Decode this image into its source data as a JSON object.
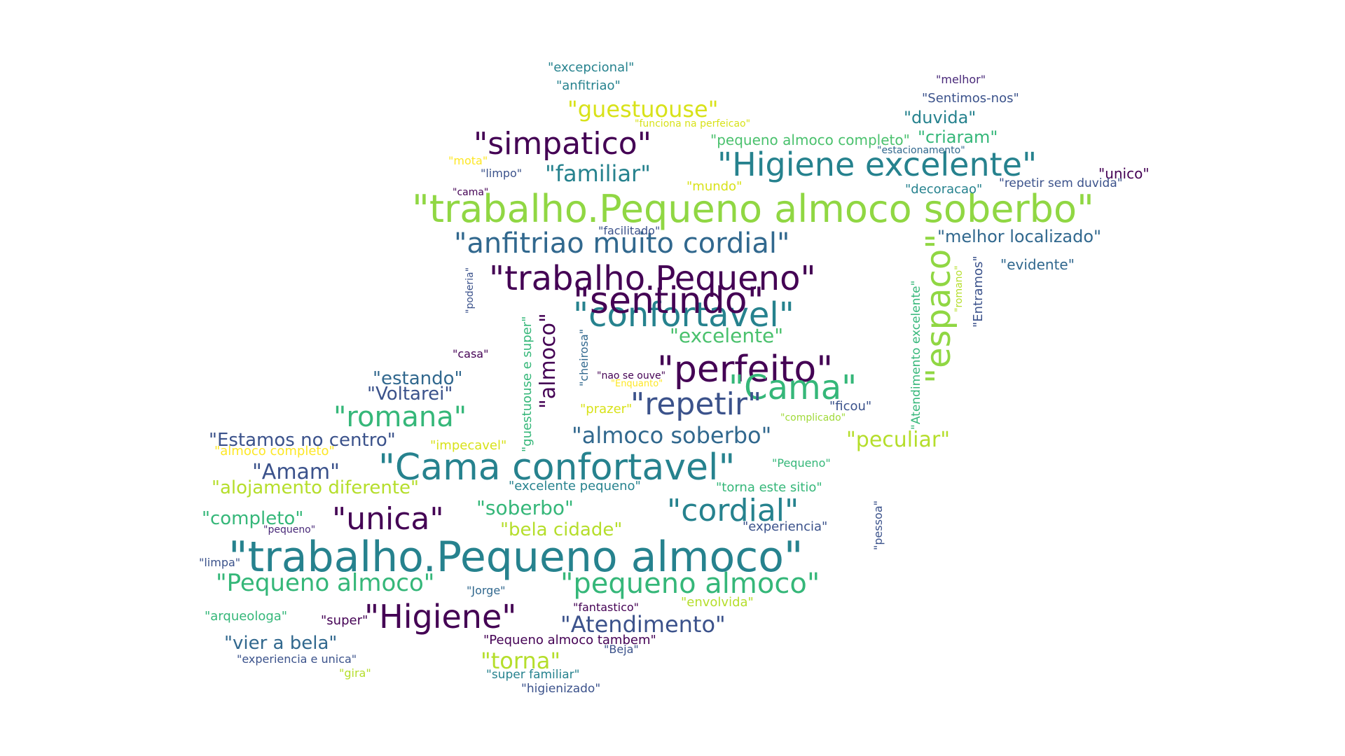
{
  "palette": {
    "dark_purple": "#440154",
    "indigo": "#3b528b",
    "teal": "#21908c",
    "green": "#35b779",
    "lime": "#90d743",
    "yellow": "#e7e419"
  },
  "words": [
    {
      "text": "\"trabalho.Pequeno almoco soberbo\"",
      "color": "#90d743"
    },
    {
      "text": "\"trabalho.Pequeno almoco\"",
      "color": "#26828e"
    },
    {
      "text": "\"Cama confortavel\"",
      "color": "#26828e"
    },
    {
      "text": "\"Higiene excelente\"",
      "color": "#26828e"
    },
    {
      "text": "\"trabalho.Pequeno\"",
      "color": "#440154"
    },
    {
      "text": "\"anfitriao muito cordial\"",
      "color": "#31688e"
    },
    {
      "text": "\"confortavel\"",
      "color": "#26828e"
    },
    {
      "text": "\"perfeito\"",
      "color": "#440154"
    },
    {
      "text": "\"sentindo\"",
      "color": "#440154"
    },
    {
      "text": "\"espaco\"",
      "color": "#90d743"
    },
    {
      "text": "\"Cama\"",
      "color": "#35b779"
    },
    {
      "text": "\"simpatico\"",
      "color": "#440154"
    },
    {
      "text": "\"Higiene\"",
      "color": "#440154"
    },
    {
      "text": "\"repetir\"",
      "color": "#3b528b"
    },
    {
      "text": "\"cordial\"",
      "color": "#26828e"
    },
    {
      "text": "\"unica\"",
      "color": "#440154"
    },
    {
      "text": "\"romana\"",
      "color": "#35b779"
    },
    {
      "text": "\"pequeno almoco\"",
      "color": "#35b779"
    },
    {
      "text": "\"Pequeno almoco\"",
      "color": "#35b779"
    },
    {
      "text": "\"almoco soberbo\"",
      "color": "#31688e"
    },
    {
      "text": "\"Atendimento\"",
      "color": "#3b528b"
    },
    {
      "text": "\"almoco\"",
      "color": "#440154"
    },
    {
      "text": "\"peculiar\"",
      "color": "#b5de2b"
    },
    {
      "text": "\"guestuouse\"",
      "color": "#d8e219"
    },
    {
      "text": "\"familiar\"",
      "color": "#26828e"
    },
    {
      "text": "\"excelente\"",
      "color": "#4ac16d"
    },
    {
      "text": "\"melhor localizado\"",
      "color": "#31688e"
    },
    {
      "text": "\"alojamento diferente\"",
      "color": "#b5de2b"
    },
    {
      "text": "\"soberbo\"",
      "color": "#35b779"
    },
    {
      "text": "\"torna\"",
      "color": "#b5de2b"
    },
    {
      "text": "\"Amam\"",
      "color": "#3b528b"
    },
    {
      "text": "\"estando\"",
      "color": "#31688e"
    },
    {
      "text": "\"Voltarei\"",
      "color": "#3b528b"
    },
    {
      "text": "\"Estamos no centro\"",
      "color": "#3b528b"
    },
    {
      "text": "\"completo\"",
      "color": "#35b779"
    },
    {
      "text": "\"bela cidade\"",
      "color": "#b5de2b"
    },
    {
      "text": "\"vier a bela\"",
      "color": "#31688e"
    },
    {
      "text": "\"duvida\"",
      "color": "#26828e"
    },
    {
      "text": "\"criaram\"",
      "color": "#35b779"
    },
    {
      "text": "\"pequeno almoco completo\"",
      "color": "#4ac16d"
    },
    {
      "text": "\"Sentimos-nos\"",
      "color": "#3b528b"
    },
    {
      "text": "\"excepcional\"",
      "color": "#26828e"
    },
    {
      "text": "\"anfitriao\"",
      "color": "#26828e"
    },
    {
      "text": "\"melhor\"",
      "color": "#482878"
    },
    {
      "text": "\"unico\"",
      "color": "#440154"
    },
    {
      "text": "\"repetir sem duvida\"",
      "color": "#3b528b"
    },
    {
      "text": "\"decoracao\"",
      "color": "#26828e"
    },
    {
      "text": "\"estacionamento\"",
      "color": "#31688e"
    },
    {
      "text": "\"evidente\"",
      "color": "#31688e"
    },
    {
      "text": "\"Entramos\"",
      "color": "#3b528b"
    },
    {
      "text": "\"romano\"",
      "color": "#b5de2b"
    },
    {
      "text": "\"Atendimento excelente\"",
      "color": "#35b779"
    },
    {
      "text": "\"funciona na perfeicao\"",
      "color": "#d8e219"
    },
    {
      "text": "\"mota\"",
      "color": "#fde725"
    },
    {
      "text": "\"limpo\"",
      "color": "#3b528b"
    },
    {
      "text": "\"cama\"",
      "color": "#440154"
    },
    {
      "text": "\"mundo\"",
      "color": "#d8e219"
    },
    {
      "text": "\"facilitado\"",
      "color": "#3b528b"
    },
    {
      "text": "\"poderia\"",
      "color": "#3b528b"
    },
    {
      "text": "\"casa\"",
      "color": "#440154"
    },
    {
      "text": "\"guestuouse e super\"",
      "color": "#35b779"
    },
    {
      "text": "\"cheirosa\"",
      "color": "#31688e"
    },
    {
      "text": "\"nao se ouve\"",
      "color": "#440154"
    },
    {
      "text": "\"Enquanto\"",
      "color": "#fde725"
    },
    {
      "text": "\"prazer\"",
      "color": "#d8e219"
    },
    {
      "text": "\"ficou\"",
      "color": "#3b528b"
    },
    {
      "text": "\"complicado\"",
      "color": "#a0da39"
    },
    {
      "text": "\"impecavel\"",
      "color": "#d8e219"
    },
    {
      "text": "\"almoco completo\"",
      "color": "#fde725"
    },
    {
      "text": "\"Pequeno\"",
      "color": "#35b779"
    },
    {
      "text": "\"excelente pequeno\"",
      "color": "#26828e"
    },
    {
      "text": "\"torna este sitio\"",
      "color": "#35b779"
    },
    {
      "text": "\"experiencia\"",
      "color": "#3b528b"
    },
    {
      "text": "\"pessoa\"",
      "color": "#3b528b"
    },
    {
      "text": "\"pequeno\"",
      "color": "#482878"
    },
    {
      "text": "\"limpa\"",
      "color": "#3b528b"
    },
    {
      "text": "\"Jorge\"",
      "color": "#31688e"
    },
    {
      "text": "\"fantastico\"",
      "color": "#440154"
    },
    {
      "text": "\"envolvida\"",
      "color": "#b5de2b"
    },
    {
      "text": "\"arqueologa\"",
      "color": "#35b779"
    },
    {
      "text": "\"super\"",
      "color": "#440154"
    },
    {
      "text": "\"Pequeno almoco tambem\"",
      "color": "#440154"
    },
    {
      "text": "\"Beja\"",
      "color": "#3b528b"
    },
    {
      "text": "\"experiencia e unica\"",
      "color": "#3b528b"
    },
    {
      "text": "\"gira\"",
      "color": "#b5de2b"
    },
    {
      "text": "\"super familiar\"",
      "color": "#26828e"
    },
    {
      "text": "\"higienizado\"",
      "color": "#3b528b"
    }
  ]
}
